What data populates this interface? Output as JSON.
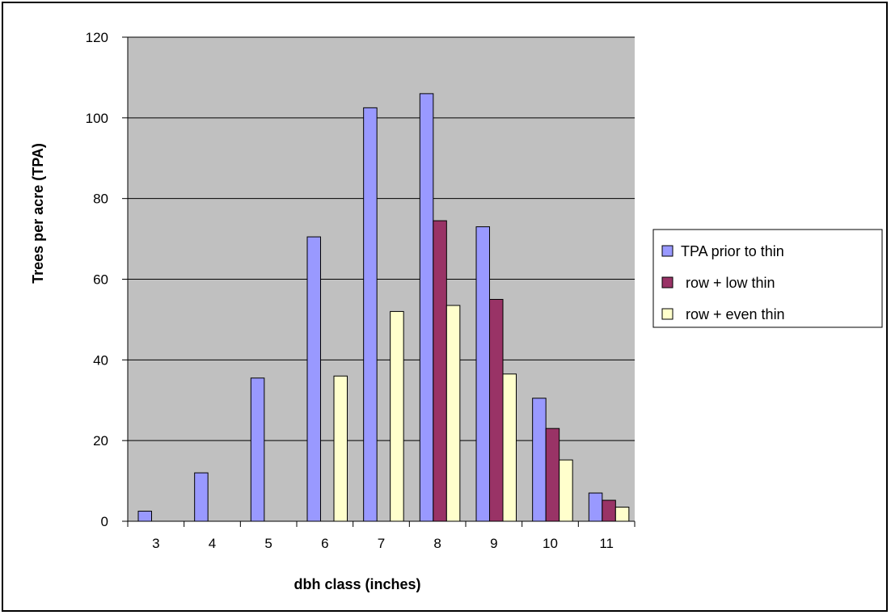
{
  "chart_data": {
    "type": "bar",
    "title": "",
    "xlabel": "dbh class (inches)",
    "ylabel": "Trees per acre (TPA)",
    "ylim": [
      0,
      120
    ],
    "yticks": [
      0,
      20,
      40,
      60,
      80,
      100,
      120
    ],
    "categories": [
      "3",
      "4",
      "5",
      "6",
      "7",
      "8",
      "9",
      "10",
      "11"
    ],
    "series": [
      {
        "name": "TPA prior to thin",
        "color": "#9999ff",
        "values": [
          2.5,
          12,
          35.5,
          70.5,
          102.5,
          106,
          73,
          30.5,
          7
        ]
      },
      {
        "name": "row + low thin",
        "color": "#993366",
        "values": [
          0,
          0,
          0,
          0,
          0,
          74.5,
          55,
          23,
          5.2
        ]
      },
      {
        "name": "row + even thin",
        "color": "#ffffcc",
        "values": [
          0,
          0,
          0,
          36,
          52,
          53.5,
          36.5,
          15.2,
          3.5
        ]
      }
    ],
    "grid": true,
    "plot_background": "#c0c0c0",
    "legend_position": "right"
  }
}
